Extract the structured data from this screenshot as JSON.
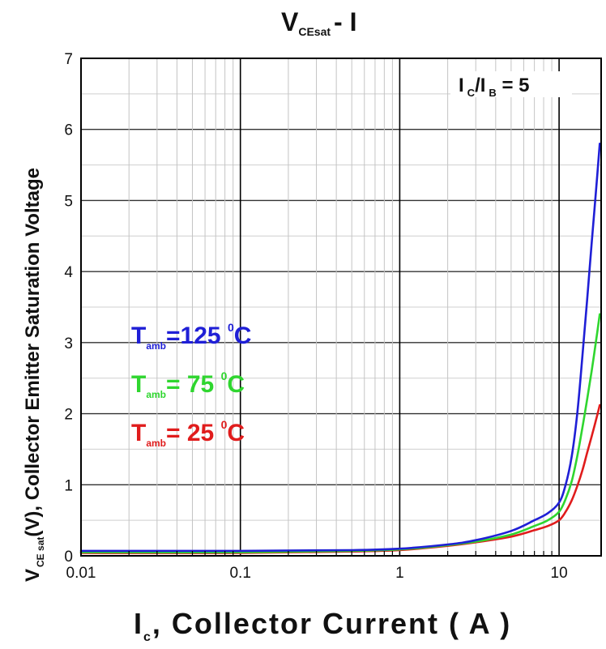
{
  "chart_data": {
    "type": "line",
    "title": {
      "main": "V",
      "sub": "CEsat",
      "rest": "- I"
    },
    "x_axis": {
      "scale": "log",
      "range": [
        0.01,
        20
      ],
      "tick_labels": [
        "0.01",
        "0.1",
        "1",
        "10"
      ],
      "title": {
        "main": "I",
        "sub": "c",
        "rest": ", Collector Current ( A )"
      }
    },
    "y_axis": {
      "scale": "linear",
      "range": [
        0,
        7
      ],
      "tick_labels": [
        "0",
        "1",
        "2",
        "3",
        "4",
        "5",
        "6",
        "7"
      ],
      "title": {
        "main": "V",
        "sub": "CE sat",
        "rest": "(V), Collector Emitter Saturation Voltage"
      }
    },
    "grid": true,
    "annotation": {
      "main": "I",
      "sub1": "C",
      "slash": "/I",
      "sub2": "B",
      "rest": " = 5"
    },
    "series": [
      {
        "name": "T_amb=125 °C",
        "label": {
          "t": "T",
          "sub": "amb",
          "mid": "=125 ",
          "sup": "0",
          "unit": "C"
        },
        "color": "#1f1fd6",
        "x": [
          0.01,
          0.1,
          0.5,
          1,
          2,
          3,
          5,
          7,
          8.5,
          10,
          11,
          12,
          13,
          14,
          15,
          16,
          17,
          18
        ],
        "y": [
          0.07,
          0.07,
          0.08,
          0.1,
          0.16,
          0.22,
          0.35,
          0.5,
          0.6,
          0.75,
          1.0,
          1.4,
          2.0,
          2.8,
          3.6,
          4.4,
          5.1,
          5.8
        ]
      },
      {
        "name": "T_amb= 75 °C",
        "label": {
          "t": "T",
          "sub": "amb",
          "mid": "= 75 ",
          "sup": "0",
          "unit": "C"
        },
        "color": "#2fd62f",
        "x": [
          0.01,
          0.1,
          0.5,
          1,
          2,
          3,
          5,
          7,
          8.5,
          10,
          11,
          12,
          13,
          14,
          15,
          16,
          17,
          18
        ],
        "y": [
          0.05,
          0.05,
          0.07,
          0.09,
          0.15,
          0.2,
          0.3,
          0.42,
          0.5,
          0.62,
          0.8,
          1.05,
          1.4,
          1.8,
          2.2,
          2.6,
          3.0,
          3.4
        ]
      },
      {
        "name": "T_amb= 25 °C",
        "label": {
          "t": "T",
          "sub": "amb",
          "mid": "= 25 ",
          "sup": "0",
          "unit": "C"
        },
        "color": "#e01c1c",
        "x": [
          0.01,
          0.1,
          0.5,
          1,
          2,
          3,
          5,
          7,
          8.5,
          10,
          11,
          12,
          13,
          14,
          15,
          16,
          17,
          18
        ],
        "y": [
          0.04,
          0.04,
          0.06,
          0.08,
          0.14,
          0.19,
          0.27,
          0.36,
          0.42,
          0.5,
          0.62,
          0.78,
          0.98,
          1.2,
          1.45,
          1.68,
          1.9,
          2.12
        ]
      }
    ]
  }
}
